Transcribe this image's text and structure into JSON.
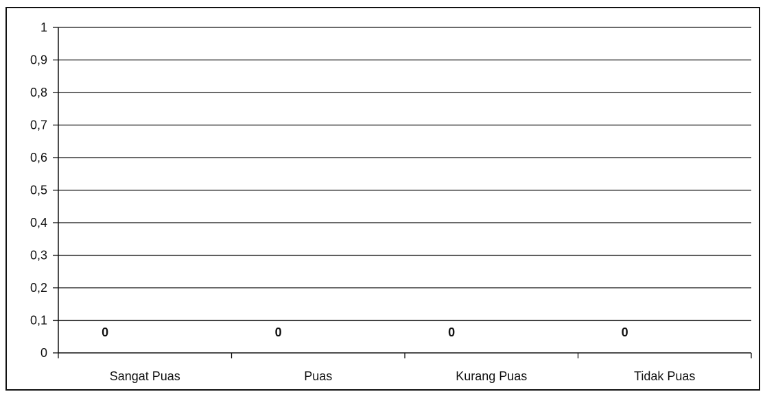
{
  "chart_data": {
    "type": "bar",
    "title": "",
    "xlabel": "",
    "ylabel": "",
    "categories": [
      "Sangat Puas",
      "Puas",
      "Kurang Puas",
      "Tidak Puas"
    ],
    "values": [
      0,
      0,
      0,
      0
    ],
    "data_labels": [
      "0",
      "0",
      "0",
      "0"
    ],
    "ylim": [
      0,
      1
    ],
    "yticks": [
      "0",
      "0,1",
      "0,2",
      "0,3",
      "0,4",
      "0,5",
      "0,6",
      "0,7",
      "0,8",
      "0,9",
      "1"
    ],
    "grid": true,
    "legend": "none",
    "colors": {
      "axis": "#111111",
      "grid": "#111111"
    }
  }
}
